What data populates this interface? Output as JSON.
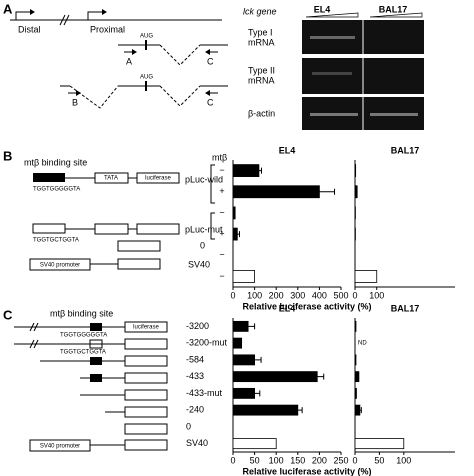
{
  "panel_a": {
    "label": "A",
    "distal": "Distal",
    "proximal": "Proximal",
    "aug": "AUG",
    "primers": [
      "A",
      "C",
      "B",
      "C"
    ],
    "gene_label": "lck gene",
    "cell_lines": [
      "EL4",
      "BAL17"
    ],
    "rows": [
      {
        "name": "Type I",
        "sub": "mRNA"
      },
      {
        "name": "Type II",
        "sub": "mRNA"
      },
      {
        "name": "β-actin"
      }
    ]
  },
  "panel_b": {
    "label": "B",
    "site": "mtβ binding site",
    "factor": "mtβ",
    "seq_wild": "TGGTGGGGGTA",
    "seq_mut": "TGGTGCTGGTA",
    "tata": "TATA",
    "luciferase": "luciferase",
    "sv40_promoter": "SV40 promoter",
    "constructs": [
      "pLuc-wild",
      "pLuc-mut",
      "0",
      "SV40"
    ]
  },
  "panel_c": {
    "label": "C",
    "site": "mtβ binding site",
    "seq_wild": "TGGTGGGGGTA",
    "seq_mut": "TGGTGCTGGTA",
    "luciferase": "luciferase",
    "sv40_promoter": "SV40 promoter"
  },
  "chart_data": [
    {
      "type": "bar",
      "orientation": "horizontal",
      "title": "EL4",
      "categories": [
        "−",
        "+",
        "−",
        "+",
        "−",
        "−"
      ],
      "values": [
        120,
        400,
        10,
        20,
        0,
        100
      ],
      "errors": [
        12,
        70,
        null,
        10,
        null,
        null
      ],
      "colors": [
        "#000000",
        "#000000",
        "#000000",
        "#000000",
        "#ffffff",
        "#ffffff"
      ],
      "xlim": [
        0,
        500
      ],
      "xticks": [
        0,
        100,
        200,
        300,
        400,
        500
      ],
      "xlabel": "Relative luciferase activity (%)"
    },
    {
      "type": "bar",
      "orientation": "horizontal",
      "title": "BAL17",
      "categories": [
        null,
        null,
        null,
        null,
        null,
        null
      ],
      "values": [
        3,
        10,
        2,
        2,
        0,
        100
      ],
      "errors": [
        null,
        null,
        null,
        null,
        null,
        null
      ],
      "colors": [
        "#000000",
        "#000000",
        "#000000",
        "#000000",
        "#ffffff",
        "#ffffff"
      ],
      "xlim": [
        0,
        460
      ],
      "xticks": [
        0,
        100
      ]
    },
    {
      "type": "bar",
      "orientation": "horizontal",
      "title": "EL4",
      "categories": [
        "-3200",
        "-3200-mut",
        "-584",
        "-433",
        "-433-mut",
        "-240",
        "0",
        "SV40"
      ],
      "values": [
        35,
        20,
        50,
        195,
        50,
        150,
        0,
        100
      ],
      "errors": [
        15,
        null,
        15,
        15,
        12,
        10,
        null,
        null
      ],
      "colors": [
        "#000000",
        "#000000",
        "#000000",
        "#000000",
        "#000000",
        "#000000",
        "#ffffff",
        "#ffffff"
      ],
      "xlim": [
        0,
        250
      ],
      "xticks": [
        0,
        50,
        100,
        150,
        200,
        250
      ],
      "xlabel": "Relative luciferase activity (%)"
    },
    {
      "type": "bar",
      "orientation": "horizontal",
      "title": "BAL17",
      "categories": [
        null,
        null,
        null,
        null,
        null,
        null,
        null,
        null
      ],
      "values": [
        2,
        null,
        2,
        8,
        3,
        10,
        0,
        100
      ],
      "value_labels": [
        null,
        "ND",
        null,
        null,
        null,
        null,
        null,
        null
      ],
      "errors": [
        null,
        null,
        null,
        null,
        null,
        3,
        null,
        null
      ],
      "colors": [
        "#000000",
        "#000000",
        "#000000",
        "#000000",
        "#000000",
        "#000000",
        "#ffffff",
        "#ffffff"
      ],
      "xlim": [
        0,
        205
      ],
      "xticks": [
        0,
        50,
        100
      ]
    }
  ]
}
